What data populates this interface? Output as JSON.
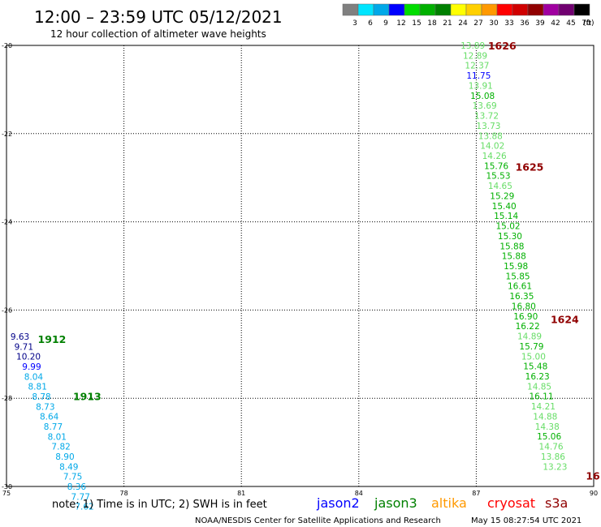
{
  "header": {
    "title": "12:00 – 23:59 UTC 05/12/2021",
    "subtitle": "12 hour collection of altimeter wave heights"
  },
  "legend": {
    "unit": "(ft)",
    "bins": [
      {
        "label": "3",
        "color": "#808080"
      },
      {
        "label": "6",
        "color": "#00e5ff"
      },
      {
        "label": "9",
        "color": "#00a8e8"
      },
      {
        "label": "12",
        "color": "#0000ff"
      },
      {
        "label": "15",
        "color": "#00dd00"
      },
      {
        "label": "18",
        "color": "#00b000"
      },
      {
        "label": "21",
        "color": "#008000"
      },
      {
        "label": "24",
        "color": "#ffff00"
      },
      {
        "label": "27",
        "color": "#ffd000"
      },
      {
        "label": "30",
        "color": "#ff9900"
      },
      {
        "label": "33",
        "color": "#ff0000"
      },
      {
        "label": "36",
        "color": "#d00000"
      },
      {
        "label": "39",
        "color": "#900000"
      },
      {
        "label": "42",
        "color": "#a000a0"
      },
      {
        "label": "45",
        "color": "#700070"
      },
      {
        "label": "70",
        "color": "#000000"
      }
    ]
  },
  "footer": {
    "note": "note:  1) Time is in UTC;  2) SWH is in feet",
    "satellites": [
      {
        "name": "jason2",
        "color": "#0000ff"
      },
      {
        "name": "jason3",
        "color": "#008000"
      },
      {
        "name": "altika",
        "color": "#ff9900"
      },
      {
        "name": "cryosat",
        "color": "#ff0000"
      },
      {
        "name": "s3a",
        "color": "#900000"
      }
    ],
    "credit": "NOAA/NESDIS Center for Satellite Applications and Research",
    "timestamp": "May 15 08:27:54 UTC 2021"
  },
  "chart_data": {
    "type": "scatter",
    "xlim": [
      75,
      90
    ],
    "ylim": [
      -30,
      -20
    ],
    "x_ticks": [
      "75",
      "78",
      "81",
      "84",
      "87",
      "90"
    ],
    "x_tick_values": [
      75,
      78,
      81,
      84,
      87,
      90
    ],
    "y_ticks": [
      "-20",
      "-22",
      "-24",
      "-26",
      "-28",
      "-30"
    ],
    "y_tick_values": [
      -20,
      -22,
      -24,
      -26,
      -28,
      -30
    ],
    "grid": true,
    "time_labels": [
      {
        "text": "1626",
        "x": 87.3,
        "y": -20.0,
        "color": "#900000"
      },
      {
        "text": "1625",
        "x": 88.0,
        "y": -22.75,
        "color": "#900000"
      },
      {
        "text": "1624",
        "x": 88.9,
        "y": -26.2,
        "color": "#900000"
      },
      {
        "text": "16",
        "x": 89.8,
        "y": -29.75,
        "color": "#900000"
      },
      {
        "text": "1912",
        "x": 75.8,
        "y": -26.65,
        "color": "#008000"
      },
      {
        "text": "1913",
        "x": 76.7,
        "y": -27.95,
        "color": "#008000"
      }
    ],
    "series": [
      {
        "satellite": "s3a",
        "points": [
          {
            "x": 86.6,
            "y": -20.0,
            "v": "13.89",
            "c": "#66dd66"
          },
          {
            "x": 86.66,
            "y": -20.23,
            "v": "12.89",
            "c": "#66dd66"
          },
          {
            "x": 86.71,
            "y": -20.45,
            "v": "12.37",
            "c": "#66dd66"
          },
          {
            "x": 86.75,
            "y": -20.68,
            "v": "11.75",
            "c": "#0000ff"
          },
          {
            "x": 86.8,
            "y": -20.91,
            "v": "13.91",
            "c": "#66dd66"
          },
          {
            "x": 86.85,
            "y": -21.14,
            "v": "15.08",
            "c": "#00b000"
          },
          {
            "x": 86.9,
            "y": -21.36,
            "v": "13.69",
            "c": "#66dd66"
          },
          {
            "x": 86.95,
            "y": -21.59,
            "v": "13.72",
            "c": "#66dd66"
          },
          {
            "x": 87.0,
            "y": -21.82,
            "v": "13.73",
            "c": "#66dd66"
          },
          {
            "x": 87.05,
            "y": -22.05,
            "v": "13.88",
            "c": "#66dd66"
          },
          {
            "x": 87.1,
            "y": -22.27,
            "v": "14.02",
            "c": "#66dd66"
          },
          {
            "x": 87.15,
            "y": -22.5,
            "v": "14.26",
            "c": "#66dd66"
          },
          {
            "x": 87.2,
            "y": -22.73,
            "v": "15.76",
            "c": "#00b000"
          },
          {
            "x": 87.25,
            "y": -22.95,
            "v": "15.53",
            "c": "#00b000"
          },
          {
            "x": 87.3,
            "y": -23.18,
            "v": "14.65",
            "c": "#66dd66"
          },
          {
            "x": 87.35,
            "y": -23.41,
            "v": "15.29",
            "c": "#00b000"
          },
          {
            "x": 87.4,
            "y": -23.64,
            "v": "15.40",
            "c": "#00b000"
          },
          {
            "x": 87.45,
            "y": -23.86,
            "v": "15.14",
            "c": "#00b000"
          },
          {
            "x": 87.5,
            "y": -24.09,
            "v": "15.02",
            "c": "#00b000"
          },
          {
            "x": 87.55,
            "y": -24.32,
            "v": "15.30",
            "c": "#00b000"
          },
          {
            "x": 87.6,
            "y": -24.55,
            "v": "15.88",
            "c": "#00b000"
          },
          {
            "x": 87.65,
            "y": -24.77,
            "v": "15.88",
            "c": "#00b000"
          },
          {
            "x": 87.7,
            "y": -25.0,
            "v": "15.98",
            "c": "#00b000"
          },
          {
            "x": 87.75,
            "y": -25.23,
            "v": "15.85",
            "c": "#00b000"
          },
          {
            "x": 87.8,
            "y": -25.45,
            "v": "16.61",
            "c": "#00b000"
          },
          {
            "x": 87.85,
            "y": -25.68,
            "v": "16.35",
            "c": "#00b000"
          },
          {
            "x": 87.9,
            "y": -25.91,
            "v": "16.80",
            "c": "#00b000"
          },
          {
            "x": 87.95,
            "y": -26.14,
            "v": "16.90",
            "c": "#00b000"
          },
          {
            "x": 88.0,
            "y": -26.36,
            "v": "16.22",
            "c": "#00b000"
          },
          {
            "x": 88.05,
            "y": -26.59,
            "v": "14.89",
            "c": "#66dd66"
          },
          {
            "x": 88.1,
            "y": -26.82,
            "v": "15.79",
            "c": "#00b000"
          },
          {
            "x": 88.15,
            "y": -27.05,
            "v": "15.00",
            "c": "#66dd66"
          },
          {
            "x": 88.2,
            "y": -27.27,
            "v": "15.48",
            "c": "#00b000"
          },
          {
            "x": 88.25,
            "y": -27.5,
            "v": "16.23",
            "c": "#00b000"
          },
          {
            "x": 88.3,
            "y": -27.73,
            "v": "14.85",
            "c": "#66dd66"
          },
          {
            "x": 88.35,
            "y": -27.95,
            "v": "16.11",
            "c": "#00b000"
          },
          {
            "x": 88.4,
            "y": -28.18,
            "v": "14.21",
            "c": "#66dd66"
          },
          {
            "x": 88.45,
            "y": -28.41,
            "v": "14.88",
            "c": "#66dd66"
          },
          {
            "x": 88.5,
            "y": -28.64,
            "v": "14.38",
            "c": "#66dd66"
          },
          {
            "x": 88.55,
            "y": -28.86,
            "v": "15.06",
            "c": "#00b000"
          },
          {
            "x": 88.6,
            "y": -29.09,
            "v": "14.76",
            "c": "#66dd66"
          },
          {
            "x": 88.65,
            "y": -29.32,
            "v": "13.86",
            "c": "#66dd66"
          },
          {
            "x": 88.7,
            "y": -29.55,
            "v": "13.23",
            "c": "#66dd66"
          }
        ]
      },
      {
        "satellite": "jason3",
        "points": [
          {
            "x": 75.1,
            "y": -26.6,
            "v": "9.63",
            "c": "#000088"
          },
          {
            "x": 75.2,
            "y": -26.83,
            "v": "9.71",
            "c": "#000088"
          },
          {
            "x": 75.25,
            "y": -27.05,
            "v": "10.20",
            "c": "#000088"
          },
          {
            "x": 75.4,
            "y": -27.28,
            "v": "9.99",
            "c": "#0000ff"
          },
          {
            "x": 75.45,
            "y": -27.51,
            "v": "8.04",
            "c": "#00a8e8"
          },
          {
            "x": 75.55,
            "y": -27.73,
            "v": "8.81",
            "c": "#00a8e8"
          },
          {
            "x": 75.65,
            "y": -27.96,
            "v": "8.78",
            "c": "#00a8e8"
          },
          {
            "x": 75.75,
            "y": -28.19,
            "v": "8.73",
            "c": "#00a8e8"
          },
          {
            "x": 75.85,
            "y": -28.41,
            "v": "8.64",
            "c": "#00a8e8"
          },
          {
            "x": 75.95,
            "y": -28.64,
            "v": "8.77",
            "c": "#00a8e8"
          },
          {
            "x": 76.05,
            "y": -28.87,
            "v": "8.01",
            "c": "#00a8e8"
          },
          {
            "x": 76.15,
            "y": -29.09,
            "v": "7.82",
            "c": "#00a8e8"
          },
          {
            "x": 76.25,
            "y": -29.32,
            "v": "8.90",
            "c": "#00a8e8"
          },
          {
            "x": 76.35,
            "y": -29.55,
            "v": "8.49",
            "c": "#00a8e8"
          },
          {
            "x": 76.45,
            "y": -29.77,
            "v": "7.75",
            "c": "#00a8e8"
          },
          {
            "x": 76.55,
            "y": -30.0,
            "v": "8.36",
            "c": "#00a8e8"
          },
          {
            "x": 76.65,
            "y": -30.23,
            "v": "7.77",
            "c": "#00a8e8"
          },
          {
            "x": 76.75,
            "y": -30.45,
            "v": "7.62",
            "c": "#00a8e8"
          }
        ]
      }
    ]
  }
}
